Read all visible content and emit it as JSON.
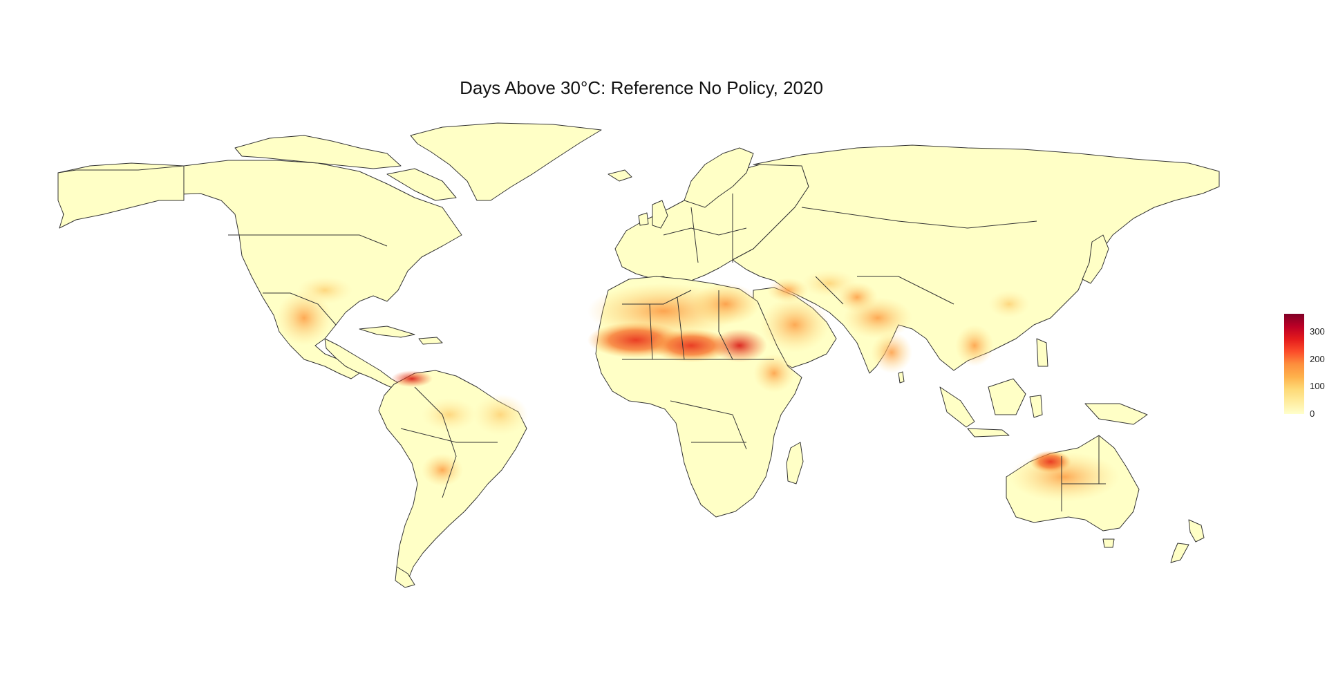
{
  "map": {
    "title": "Days Above 30°C: Reference No Policy, 2020",
    "land_color": "#ffffc6",
    "border_color": "#333333",
    "palette": [
      "#ffffcc",
      "#ffeda0",
      "#fed976",
      "#feb24c",
      "#fd8d3c",
      "#fc4e2a",
      "#e31a1c",
      "#bd0026",
      "#800026"
    ]
  },
  "legend": {
    "min": 0,
    "max": 365,
    "ticks": [
      {
        "value": 0,
        "label": "0"
      },
      {
        "value": 100,
        "label": "100"
      },
      {
        "value": 200,
        "label": "200"
      },
      {
        "value": 300,
        "label": "300"
      }
    ]
  }
}
